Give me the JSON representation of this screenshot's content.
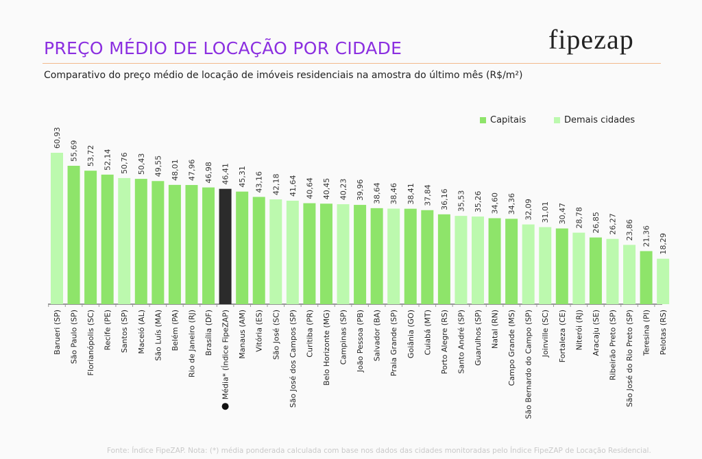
{
  "header": {
    "title": "PREÇO MÉDIO DE LOCAÇÃO POR CIDADE",
    "subtitle": "Comparativo do preço médio de locação de imóveis residenciais na amostra do último mês (R$/m²)",
    "logo": "fipezap"
  },
  "footnote": "Fonte: Índice FipeZAP. Nota: (*) média ponderada calculada com base nos dados das cidades monitoradas pelo Índice FipeZAP de Locação Residencial.",
  "colors": {
    "capital": "#8ee46a",
    "other": "#bcf9ae",
    "average": "#2b2b2b",
    "title": "#8b2fe0"
  },
  "chart_data": {
    "type": "bar",
    "title": "PREÇO MÉDIO DE LOCAÇÃO POR CIDADE",
    "ylabel": "R$/m²",
    "ylim": [
      0,
      62
    ],
    "grid": false,
    "legend": {
      "position": "top-right",
      "entries": [
        "Capitais",
        "Demais cidades"
      ]
    },
    "categories": [
      "Barueri (SP)",
      "São Paulo (SP)",
      "Florianópolis (SC)",
      "Recife (PE)",
      "Santos (SP)",
      "Maceió (AL)",
      "São Luís (MA)",
      "Belém (PA)",
      "Rio de Janeiro (RJ)",
      "Brasília (DF)",
      "Média* (Índice FipeZAP)",
      "Manaus (AM)",
      "Vitória (ES)",
      "São José (SC)",
      "São José dos Campos (SP)",
      "Curitiba (PR)",
      "Belo Horizonte (MG)",
      "Campinas (SP)",
      "João Pessoa (PB)",
      "Salvador (BA)",
      "Praia Grande (SP)",
      "Goiânia (GO)",
      "Cuiabá (MT)",
      "Porto Alegre (RS)",
      "Santo André (SP)",
      "Guarulhos (SP)",
      "Natal (RN)",
      "Campo Grande (MS)",
      "São Bernardo do Campo (SP)",
      "Joinville (SC)",
      "Fortaleza (CE)",
      "Niterói (RJ)",
      "Aracaju (SE)",
      "Ribeirão Preto (SP)",
      "São José do Rio Preto (SP)",
      "Teresina (PI)",
      "Pelotas (RS)"
    ],
    "values": [
      60.93,
      55.69,
      53.72,
      52.14,
      50.76,
      50.43,
      49.55,
      48.01,
      47.96,
      46.98,
      46.41,
      45.31,
      43.16,
      42.18,
      41.64,
      40.64,
      40.45,
      40.23,
      39.96,
      38.64,
      38.46,
      38.41,
      37.84,
      36.16,
      35.53,
      35.26,
      34.6,
      34.36,
      32.09,
      31.01,
      30.47,
      28.78,
      26.85,
      26.27,
      23.86,
      21.36,
      18.29
    ],
    "labels": [
      "60,93",
      "55,69",
      "53,72",
      "52,14",
      "50,76",
      "50,43",
      "49,55",
      "48,01",
      "47,96",
      "46,98",
      "46,41",
      "45,31",
      "43,16",
      "42,18",
      "41,64",
      "40,64",
      "40,45",
      "40,23",
      "39,96",
      "38,64",
      "38,46",
      "38,41",
      "37,84",
      "36,16",
      "35,53",
      "35,26",
      "34,60",
      "34,36",
      "32,09",
      "31,01",
      "30,47",
      "28,78",
      "26,85",
      "26,27",
      "23,86",
      "21,36",
      "18,29"
    ],
    "groups": [
      "other",
      "capital",
      "capital",
      "capital",
      "other",
      "capital",
      "capital",
      "capital",
      "capital",
      "capital",
      "average",
      "capital",
      "capital",
      "other",
      "other",
      "capital",
      "capital",
      "other",
      "capital",
      "capital",
      "other",
      "capital",
      "capital",
      "capital",
      "other",
      "other",
      "capital",
      "capital",
      "other",
      "other",
      "capital",
      "other",
      "capital",
      "other",
      "other",
      "capital",
      "other"
    ]
  }
}
